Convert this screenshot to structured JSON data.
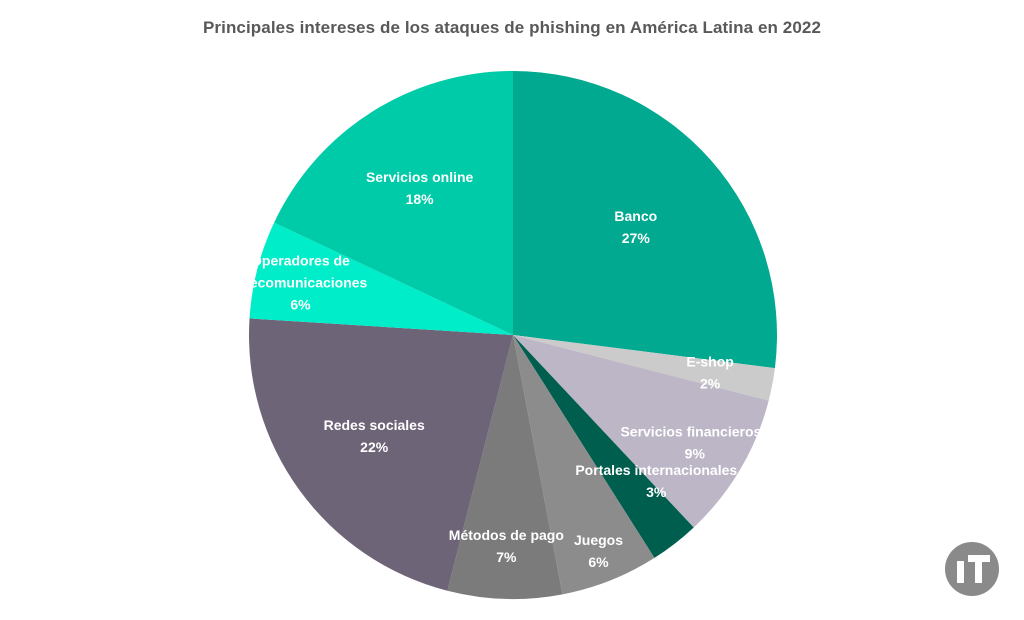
{
  "chart_data": {
    "type": "pie",
    "title": "Principales intereses de los ataques de phishing en América Latina en 2022",
    "slices": [
      {
        "label": "Banco",
        "value": 27,
        "value_label": "27%",
        "color": "#00A98F"
      },
      {
        "label": "E-shop",
        "value": 2,
        "value_label": "2%",
        "color": "#CBCBCB"
      },
      {
        "label": "Servicios financierose",
        "value": 9,
        "value_label": "9%",
        "color": "#BCB6C6"
      },
      {
        "label": "Portales internacionales",
        "value": 3,
        "value_label": "3%",
        "color": "#005E4E"
      },
      {
        "label": "Juegos",
        "value": 6,
        "value_label": "6%",
        "color": "#8C8C8C"
      },
      {
        "label": "Métodos de pago",
        "value": 7,
        "value_label": "7%",
        "color": "#7B7B7B"
      },
      {
        "label": "Redes sociales",
        "value": 22,
        "value_label": "22%",
        "color": "#6E6478"
      },
      {
        "label": "Operadores de telecomunicaciones",
        "value": 6,
        "value_label": "6%",
        "color": "#00EDC9"
      },
      {
        "label": "Servicios online",
        "value": 18,
        "value_label": "18%",
        "color": "#00CBA8"
      }
    ],
    "start_angle_deg": 0,
    "direction": "clockwise",
    "legend": "none",
    "data_labels": "inside"
  },
  "logo": {
    "name": "it-logo-icon",
    "color": "#8A8A8A"
  }
}
